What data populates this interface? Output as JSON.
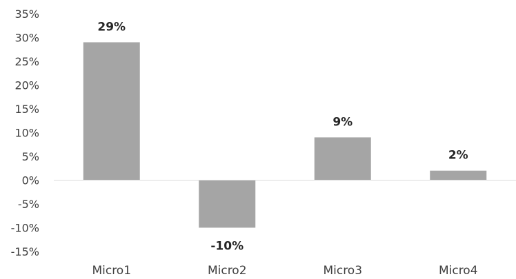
{
  "chart_data": {
    "type": "bar",
    "title": "",
    "xlabel": "",
    "ylabel": "",
    "categories": [
      "Micro1",
      "Micro2",
      "Micro3",
      "Micro4"
    ],
    "values": [
      29,
      -10,
      9,
      2
    ],
    "data_labels": [
      "29%",
      "-10%",
      "9%",
      "2%"
    ],
    "ylim": [
      -15,
      35
    ],
    "yticks": [
      35,
      30,
      25,
      20,
      15,
      10,
      5,
      0,
      -5,
      -10,
      -15
    ],
    "ytick_labels": [
      "35%",
      "30%",
      "25%",
      "20%",
      "15%",
      "10%",
      "5%",
      "0%",
      "-5%",
      "-10%",
      "-15%"
    ],
    "bar_color": "#a5a5a5",
    "grid": false,
    "legend": "none"
  }
}
